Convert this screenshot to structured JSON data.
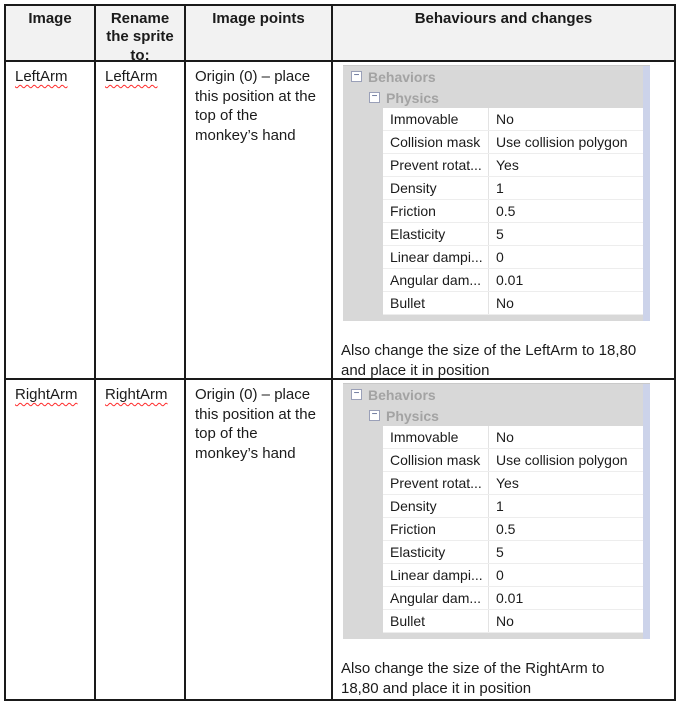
{
  "table": {
    "headers": [
      "Image",
      "Rename the sprite to:",
      "Image points",
      "Behaviours and changes"
    ],
    "rows": [
      {
        "image": "LeftArm",
        "rename": "LeftArm",
        "image_points": "Origin (0) – place this position at the top of the monkey’s hand",
        "note": "Also change the size of the LeftArm to 18,80\nand place it in position",
        "panel": {
          "group": "Behaviors",
          "subgroup": "Physics",
          "props": [
            {
              "name": "Immovable",
              "value": "No"
            },
            {
              "name": "Collision mask",
              "value": "Use collision polygon"
            },
            {
              "name": "Prevent rotat...",
              "value": "Yes"
            },
            {
              "name": "Density",
              "value": "1"
            },
            {
              "name": "Friction",
              "value": "0.5"
            },
            {
              "name": "Elasticity",
              "value": "5"
            },
            {
              "name": "Linear dampi...",
              "value": "0"
            },
            {
              "name": "Angular dam...",
              "value": "0.01"
            },
            {
              "name": "Bullet",
              "value": "No"
            }
          ]
        }
      },
      {
        "image": "RightArm",
        "rename": "RightArm",
        "image_points": "Origin (0) – place this position at the top of the monkey’s hand",
        "note": "Also change the size of the RightArm to\n18,80 and place it in position",
        "panel": {
          "group": "Behaviors",
          "subgroup": "Physics",
          "props": [
            {
              "name": "Immovable",
              "value": "No"
            },
            {
              "name": "Collision mask",
              "value": "Use collision polygon"
            },
            {
              "name": "Prevent rotat...",
              "value": "Yes"
            },
            {
              "name": "Density",
              "value": "1"
            },
            {
              "name": "Friction",
              "value": "0.5"
            },
            {
              "name": "Elasticity",
              "value": "5"
            },
            {
              "name": "Linear dampi...",
              "value": "0"
            },
            {
              "name": "Angular dam...",
              "value": "0.01"
            },
            {
              "name": "Bullet",
              "value": "No"
            }
          ]
        }
      }
    ]
  },
  "ui": {
    "minus_glyph": "−",
    "collapse_icon": "minus-box-icon"
  },
  "colors": {
    "table_border": "#1a1a1a",
    "header_bg": "#f2f2f2",
    "panel_bg": "#d8d8d8",
    "panel_header_text": "#a3a3a3",
    "row_divider": "#ededed",
    "value_divider": "#e3e3e3",
    "scrollbar": "#ccd3ea",
    "squiggle": "#ff2a2a",
    "text": "#1b1b1b"
  }
}
